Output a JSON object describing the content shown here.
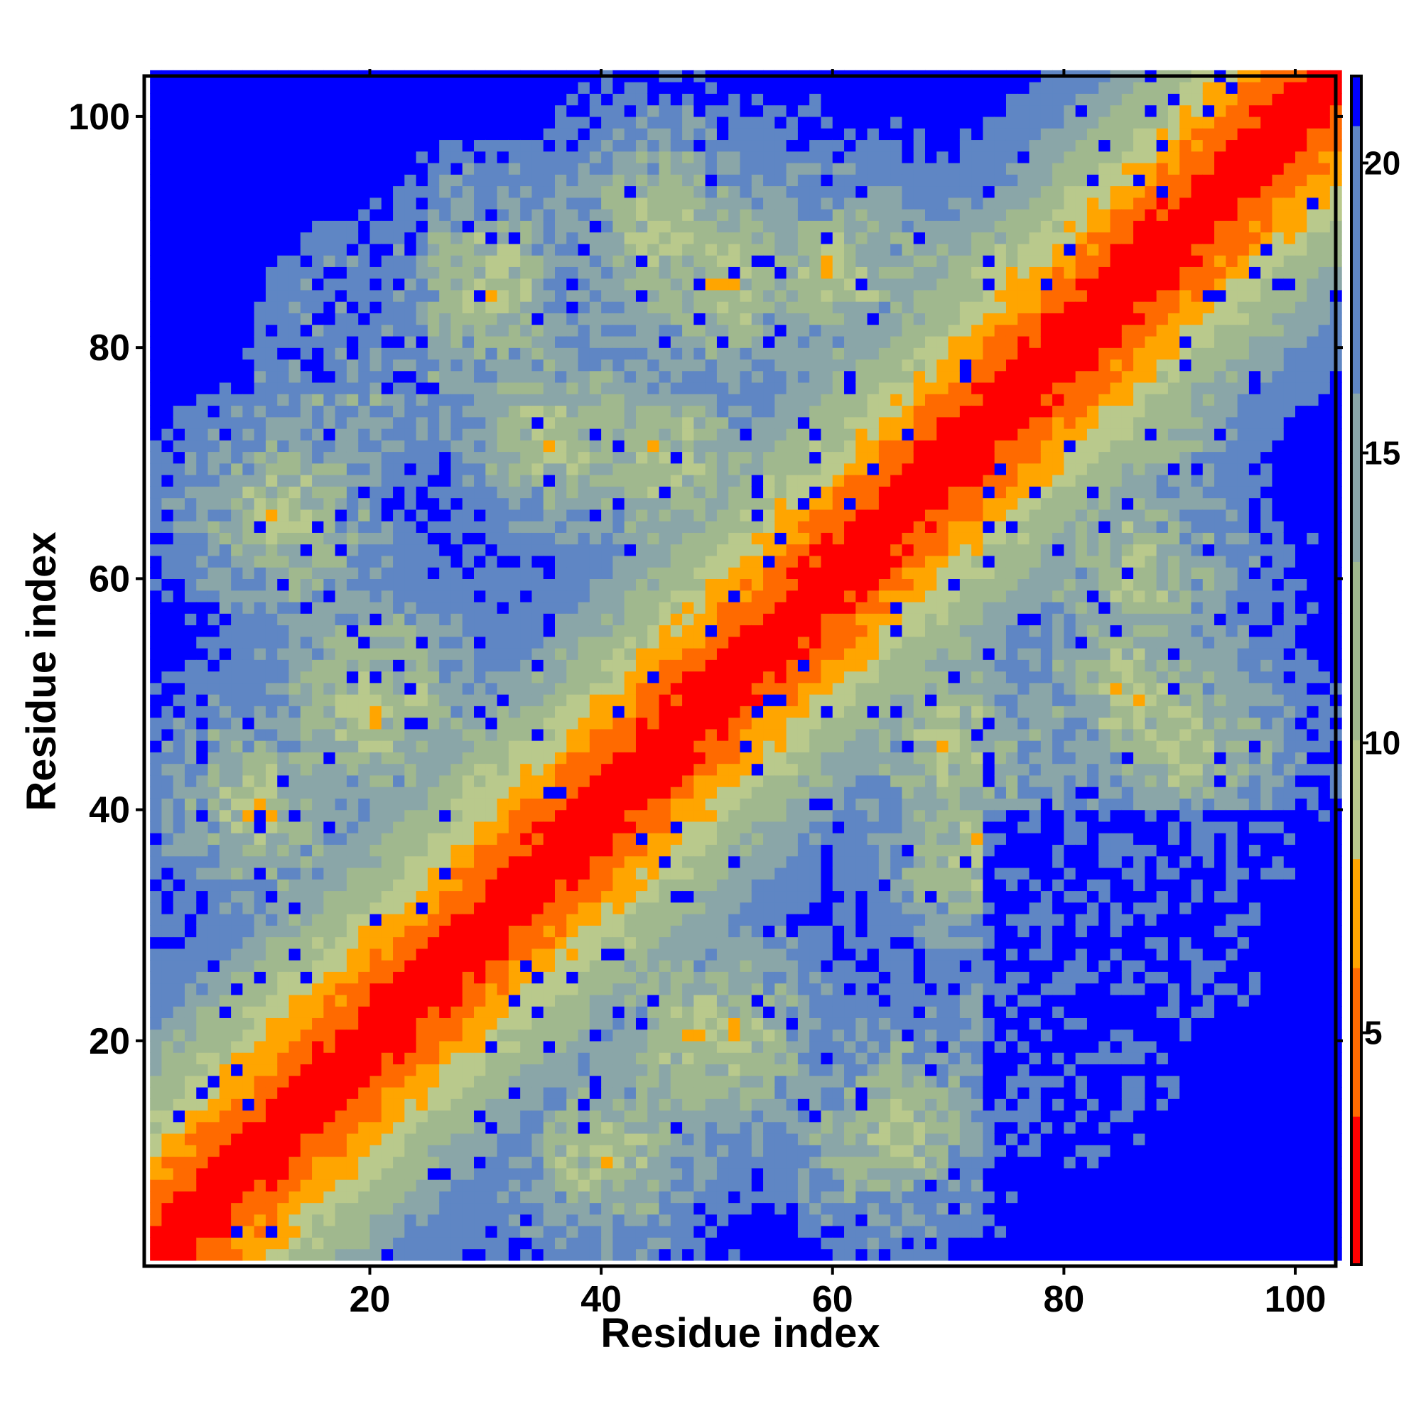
{
  "chart_data": {
    "type": "heatmap",
    "title": "",
    "xlabel": "Residue index",
    "ylabel": "Residue index",
    "n_residues": 103,
    "xlim": [
      1,
      103
    ],
    "ylim": [
      1,
      103
    ],
    "x_ticks": [
      20,
      40,
      60,
      80,
      100
    ],
    "x_tick_labels": [
      "20",
      "40",
      "60",
      "80",
      "100"
    ],
    "y_ticks": [
      20,
      40,
      60,
      80,
      100
    ],
    "y_tick_labels": [
      "20",
      "40",
      "60",
      "80",
      "100"
    ],
    "colorbar": {
      "range": [
        1,
        21.5
      ],
      "ticks": [
        5,
        10,
        15,
        20
      ],
      "tick_labels": [
        "5",
        "10",
        "15",
        "20"
      ],
      "low_color": "#ff0000",
      "mid_colors": [
        "#ff8000",
        "#ffa500",
        "#a8c68a",
        "#5a86c8"
      ],
      "high_color": "#0000ff"
    },
    "description_values": "Symmetric-ish residue distance map: values ~1-3 on the diagonal, rising through orange (5-8) and green/grey-blue (9-20) to saturated blue (>20) far from the diagonal; lower-right block (x>70, y<40) mostly >20."
  }
}
